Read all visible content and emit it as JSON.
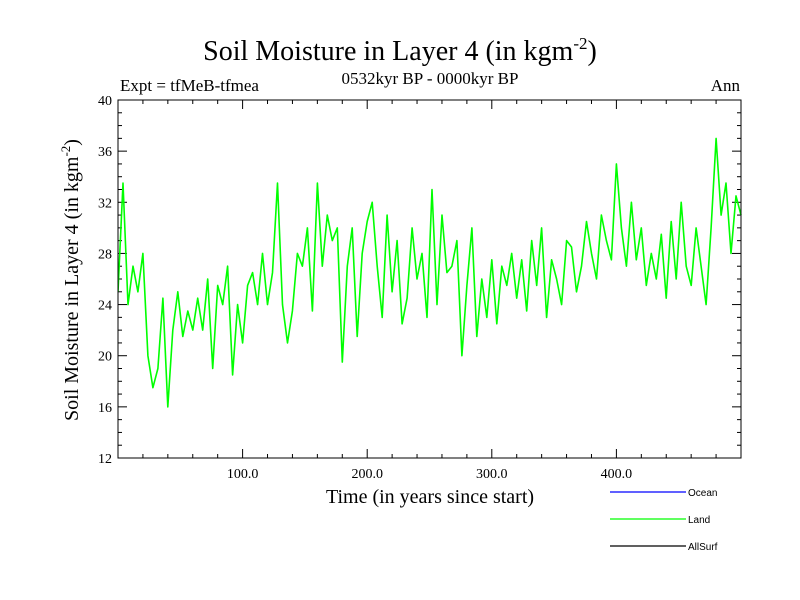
{
  "chart_data": {
    "type": "line",
    "title": "Soil Moisture in Layer 4 (in kgm",
    "title_sup": "-2",
    "title_close": ")",
    "subtitle": "0532kyr BP - 0000kyr BP",
    "left_label": "Expt = tfMeB-tfmea",
    "right_label": "Ann",
    "xlabel": "Time (in years since start)",
    "ylabel": "Soil Moisture in Layer 4 (in kgm",
    "ylabel_sup": "-2",
    "ylabel_close": ")",
    "xlim": [
      0,
      500
    ],
    "ylim": [
      12,
      40
    ],
    "xticks": [
      100,
      200,
      300,
      400
    ],
    "xtick_labels": [
      "100.0",
      "200.0",
      "300.0",
      "400.0"
    ],
    "yticks": [
      12,
      16,
      20,
      24,
      28,
      32,
      36,
      40
    ],
    "ytick_labels": [
      "12",
      "16",
      "20",
      "24",
      "28",
      "32",
      "36",
      "40"
    ],
    "grid": false,
    "legend_position": "bottom-right",
    "series": [
      {
        "name": "Ocean",
        "color": "#0000ff",
        "values": []
      },
      {
        "name": "Land",
        "color": "#00ff00",
        "x": [
          0,
          4,
          8,
          12,
          16,
          20,
          24,
          28,
          32,
          36,
          40,
          44,
          48,
          52,
          56,
          60,
          64,
          68,
          72,
          76,
          80,
          84,
          88,
          92,
          96,
          100,
          104,
          108,
          112,
          116,
          120,
          124,
          128,
          132,
          136,
          140,
          144,
          148,
          152,
          156,
          160,
          164,
          168,
          172,
          176,
          180,
          184,
          188,
          192,
          196,
          200,
          204,
          208,
          212,
          216,
          220,
          224,
          228,
          232,
          236,
          240,
          244,
          248,
          252,
          256,
          260,
          264,
          268,
          272,
          276,
          280,
          284,
          288,
          292,
          296,
          300,
          304,
          308,
          312,
          316,
          320,
          324,
          328,
          332,
          336,
          340,
          344,
          348,
          352,
          356,
          360,
          364,
          368,
          372,
          376,
          380,
          384,
          388,
          392,
          396,
          400,
          404,
          408,
          412,
          416,
          420,
          424,
          428,
          432,
          436,
          440,
          444,
          448,
          452,
          456,
          460,
          464,
          468,
          472,
          476,
          480,
          484,
          488,
          492,
          496,
          500
        ],
        "values": [
          25,
          33.5,
          24,
          27,
          25,
          28,
          20,
          17.5,
          19,
          24.5,
          16,
          22,
          25,
          21.5,
          23.5,
          22,
          24.5,
          22,
          26,
          19,
          25.5,
          24,
          27,
          18.5,
          24,
          21,
          25.5,
          26.5,
          24,
          28,
          24,
          26.5,
          33.5,
          24,
          21,
          23.5,
          28,
          27,
          30,
          23.5,
          33.5,
          27,
          31,
          29,
          30,
          19.5,
          27,
          30,
          21.5,
          28,
          30.5,
          32,
          27,
          23,
          31,
          25,
          29,
          22.5,
          24.5,
          30,
          26,
          28,
          23,
          33,
          24,
          31,
          26.5,
          27,
          29,
          20,
          25.5,
          30,
          21.5,
          26,
          23,
          27.5,
          22.5,
          27,
          25.5,
          28,
          24.5,
          27.5,
          23.5,
          29,
          25.5,
          30,
          23,
          27.5,
          26,
          24,
          29,
          28.5,
          25,
          27,
          30.5,
          28,
          26,
          31,
          29,
          27.5,
          35,
          30,
          27,
          32,
          27.5,
          30,
          25.5,
          28,
          26,
          29.5,
          24.5,
          30.5,
          26,
          32,
          27,
          25.5,
          30,
          27,
          24,
          30,
          37,
          31,
          33.5,
          28,
          32.5,
          31
        ]
      },
      {
        "name": "AllSurf",
        "color": "#000000",
        "values": []
      }
    ]
  }
}
